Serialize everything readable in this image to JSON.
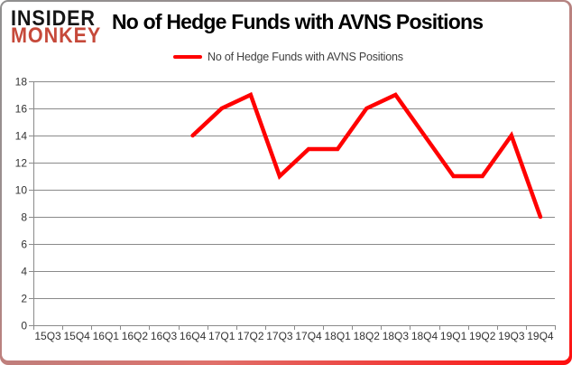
{
  "brand": {
    "line1": "INSIDER",
    "line2": "MONKEY",
    "monkey_color": "#c6493a"
  },
  "title": "No of Hedge Funds with AVNS Positions",
  "legend": {
    "label": "No of Hedge Funds with AVNS Positions",
    "color": "#ff0000"
  },
  "chart_data": {
    "type": "line",
    "title": "No of Hedge Funds with AVNS Positions",
    "categories": [
      "15Q3",
      "15Q4",
      "16Q1",
      "16Q2",
      "16Q3",
      "16Q4",
      "17Q1",
      "17Q2",
      "17Q3",
      "17Q4",
      "18Q1",
      "18Q2",
      "18Q3",
      "18Q4",
      "19Q1",
      "19Q2",
      "19Q3",
      "19Q4"
    ],
    "series": [
      {
        "name": "No of Hedge Funds with AVNS Positions",
        "color": "#ff0000",
        "values": [
          null,
          null,
          null,
          null,
          null,
          14,
          16,
          17,
          11,
          13,
          13,
          16,
          17,
          14,
          11,
          11,
          14,
          8
        ]
      }
    ],
    "xlabel": "",
    "ylabel": "",
    "ylim": [
      0,
      18
    ],
    "ytick_step": 2,
    "grid": true,
    "legend_position": "top",
    "grid_color": "#8a8a8a",
    "label_color": "#333333"
  }
}
